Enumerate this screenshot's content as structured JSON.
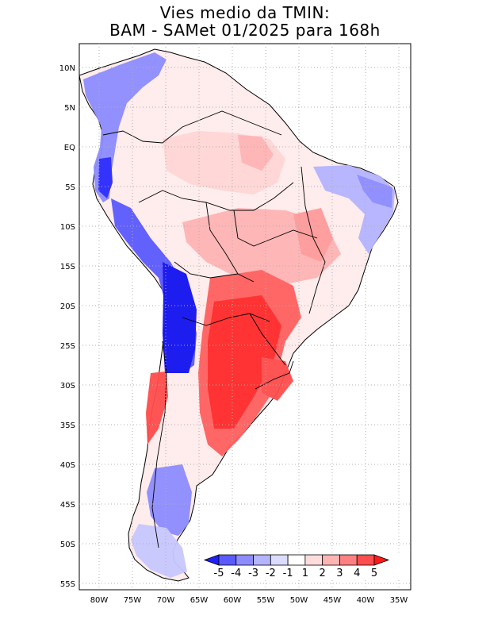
{
  "title": {
    "line1": "Vies medio da TMIN:",
    "line2": "BAM - SAMet 01/2025  para 168h"
  },
  "axes": {
    "lat_labels": [
      "10N",
      "5N",
      "EQ",
      "5S",
      "10S",
      "15S",
      "20S",
      "25S",
      "30S",
      "35S",
      "40S",
      "45S",
      "50S",
      "55S"
    ],
    "lon_labels": [
      "80W",
      "75W",
      "70W",
      "65W",
      "60W",
      "55W",
      "50W",
      "45W",
      "40W",
      "35W"
    ]
  },
  "colorbar": {
    "labels": [
      "-5",
      "-4",
      "-3",
      "-2",
      "-1",
      "1",
      "2",
      "3",
      "4",
      "5"
    ],
    "colors": [
      "#1f1fff",
      "#5a5aff",
      "#8c8cff",
      "#b4b4ff",
      "#dcdcff",
      "#ffffff",
      "#ffdcdc",
      "#ffb4b4",
      "#ff8080",
      "#ff4c4c",
      "#ff1a1a"
    ]
  },
  "colors": {
    "strong_cold": "#1212f0",
    "cold": "#6a6aff",
    "light_cold": "#c8c8ff",
    "light_warm": "#ffd6d6",
    "warm": "#ff9a9a",
    "strong_warm": "#ff2a2a",
    "land_neutral": "#ffffff",
    "border": "#000000",
    "grid": "#b0b0b0"
  }
}
